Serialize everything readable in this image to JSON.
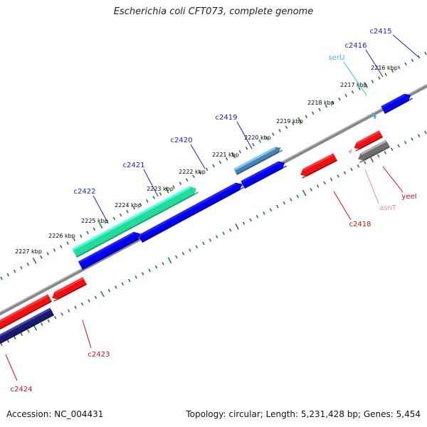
{
  "title": "Escherichia coli CFT073, complete genome",
  "footer": {
    "accession": "Accession: NC_004431",
    "topology": "Topology: circular; Length: 5,231,428 bp; Genes: 5,454"
  },
  "colors": {
    "backbone": "#888888",
    "tick": "#2a7a2a",
    "forward_label": "#1a1acc",
    "reverse_label": "#cc1111"
  },
  "scale_labels": [
    "2216 kbp",
    "2217 kbp",
    "2218 kbp",
    "2219 kbp",
    "2220 kbp",
    "2221 kbp",
    "2222 kbp",
    "2223 kbp",
    "2224 kbp",
    "2225 kbp",
    "2226 kbp",
    "2227 kbp"
  ],
  "genes": [
    {
      "name": "c2415",
      "strand": "forward",
      "color": "#0000ee",
      "label_color": "#1a1acc"
    },
    {
      "name": "c2416",
      "strand": "forward",
      "color": "#00008b",
      "label_color": "#1a1acc"
    },
    {
      "name": "serU",
      "strand": "forward",
      "color": "#33bbee",
      "label_color": "#33bbee"
    },
    {
      "name": "c2419",
      "strand": "forward",
      "color": "#4682b4",
      "label_color": "#1a1acc"
    },
    {
      "name": "c2420",
      "strand": "forward",
      "color": "#0000ee",
      "label_color": "#1a1acc"
    },
    {
      "name": "c2421",
      "strand": "forward",
      "color": "#0000ee",
      "label_color": "#1a1acc"
    },
    {
      "name": "c2422",
      "strand": "forward",
      "color": "#22dd99",
      "label_color": "#1a1acc"
    },
    {
      "name": "yeeI",
      "strand": "reverse",
      "color": "#ee1111",
      "label_color": "#cc1111"
    },
    {
      "name": "asnT",
      "strand": "reverse",
      "color": "#f4a0c0",
      "label_color": "#ee88aa"
    },
    {
      "name": "c2418",
      "strand": "reverse",
      "color": "#ee1111",
      "label_color": "#cc1111"
    },
    {
      "name": "c2423",
      "strand": "reverse",
      "color": "#ee1111",
      "label_color": "#cc1111"
    },
    {
      "name": "c2424",
      "strand": "reverse",
      "color": "#191970",
      "label_color": "#cc1111"
    }
  ]
}
